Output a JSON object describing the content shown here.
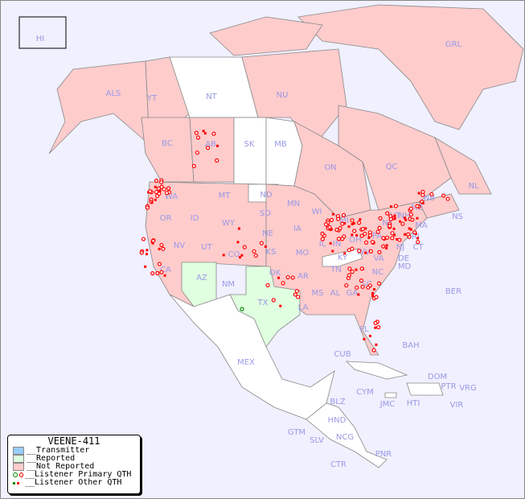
{
  "colors": {
    "water": "#f0f0ff",
    "not_reported": "#ffcccc",
    "reported": "#e0ffe0",
    "transmitter": "#99ccff",
    "no_data": "#ffffff",
    "border": "#888888",
    "listener": "#ff0000",
    "label": "#9999e6",
    "primary_green": "#008800"
  },
  "legend": {
    "title": "VEENE-411",
    "items": [
      "__Transmitter",
      "__Reported",
      "__Not Reported",
      "__Listener Primary QTH",
      "__Listener Other QTH"
    ]
  },
  "labels": [
    "HI",
    "GRL",
    "ALS",
    "YT",
    "NT",
    "NU",
    "BC",
    "AB",
    "SK",
    "MB",
    "ON",
    "QC",
    "NL",
    "NS",
    "NB",
    "WA",
    "OR",
    "ID",
    "MT",
    "ND",
    "SD",
    "WY",
    "NV",
    "UT",
    "CA",
    "CO",
    "NE",
    "KS",
    "MN",
    "WI",
    "IA",
    "MI",
    "IL",
    "IN",
    "OH",
    "PA",
    "NY",
    "VT",
    "NH",
    "ME",
    "MA",
    "RI",
    "CT",
    "NJ",
    "DE",
    "MD",
    "WV",
    "VA",
    "KY",
    "MO",
    "OK",
    "AR",
    "TN",
    "NC",
    "SC",
    "MS",
    "AL",
    "GA",
    "LA",
    "TX",
    "NM",
    "AZ",
    "FL",
    "MEX",
    "BER",
    "BAH",
    "CUB",
    "CYM",
    "JMC",
    "HTI",
    "DOM",
    "PTR",
    "VRG",
    "VIR",
    "BLZ",
    "HND",
    "GTM",
    "SLV",
    "NCG",
    "CTR",
    "PNR"
  ]
}
